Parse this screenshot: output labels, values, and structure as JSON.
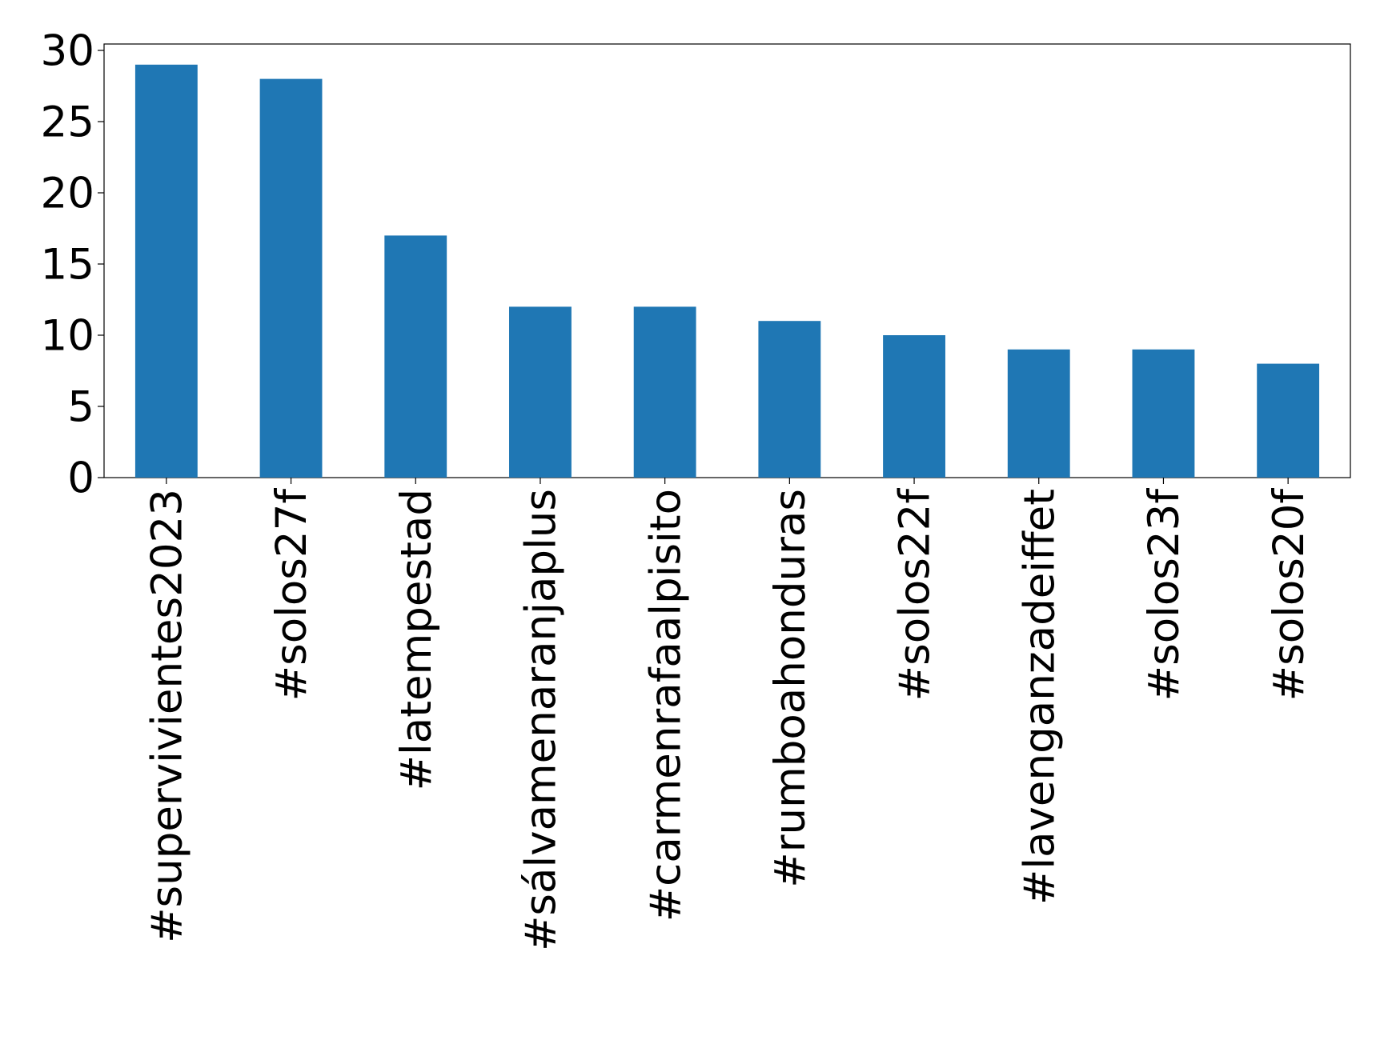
{
  "chart_data": {
    "type": "bar",
    "categories": [
      "#supervivientes2023",
      "#solos27f",
      "#latempestad",
      "#sálvamenaranjaplus",
      "#carmenrafaalpisito",
      "#rumboahonduras",
      "#solos22f",
      "#lavenganzadeiffet",
      "#solos23f",
      "#solos20f"
    ],
    "values": [
      29,
      28,
      17,
      12,
      12,
      11,
      10,
      9,
      9,
      8
    ],
    "color": "#1f77b4",
    "ylim": [
      0,
      30.45
    ],
    "yticks": [
      0,
      5,
      10,
      15,
      20,
      25,
      30
    ],
    "grid": false
  }
}
